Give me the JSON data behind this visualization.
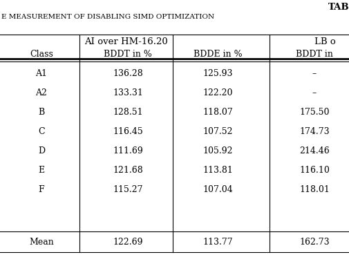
{
  "title_line1": "TAB",
  "title_line2": "E MEASUREMENT OF DISABLING SIMD OPTIMIZATION",
  "col_header1_span": "AI over HM-16.20",
  "col_header1_right": "LB o",
  "col_headers": [
    "Class",
    "BDDT in %",
    "BDDE in %",
    "BDDT in"
  ],
  "rows": [
    [
      "A1",
      "136.28",
      "125.93",
      "–"
    ],
    [
      "A2",
      "133.31",
      "122.20",
      "–"
    ],
    [
      "B",
      "128.51",
      "118.07",
      "175.50"
    ],
    [
      "C",
      "116.45",
      "107.52",
      "174.73"
    ],
    [
      "D",
      "111.69",
      "105.92",
      "214.46"
    ],
    [
      "E",
      "121.68",
      "113.81",
      "116.10"
    ],
    [
      "F",
      "115.27",
      "107.04",
      "118.01"
    ]
  ],
  "mean_row": [
    "Mean",
    "122.69",
    "113.77",
    "162.73"
  ],
  "background_color": "#ffffff"
}
